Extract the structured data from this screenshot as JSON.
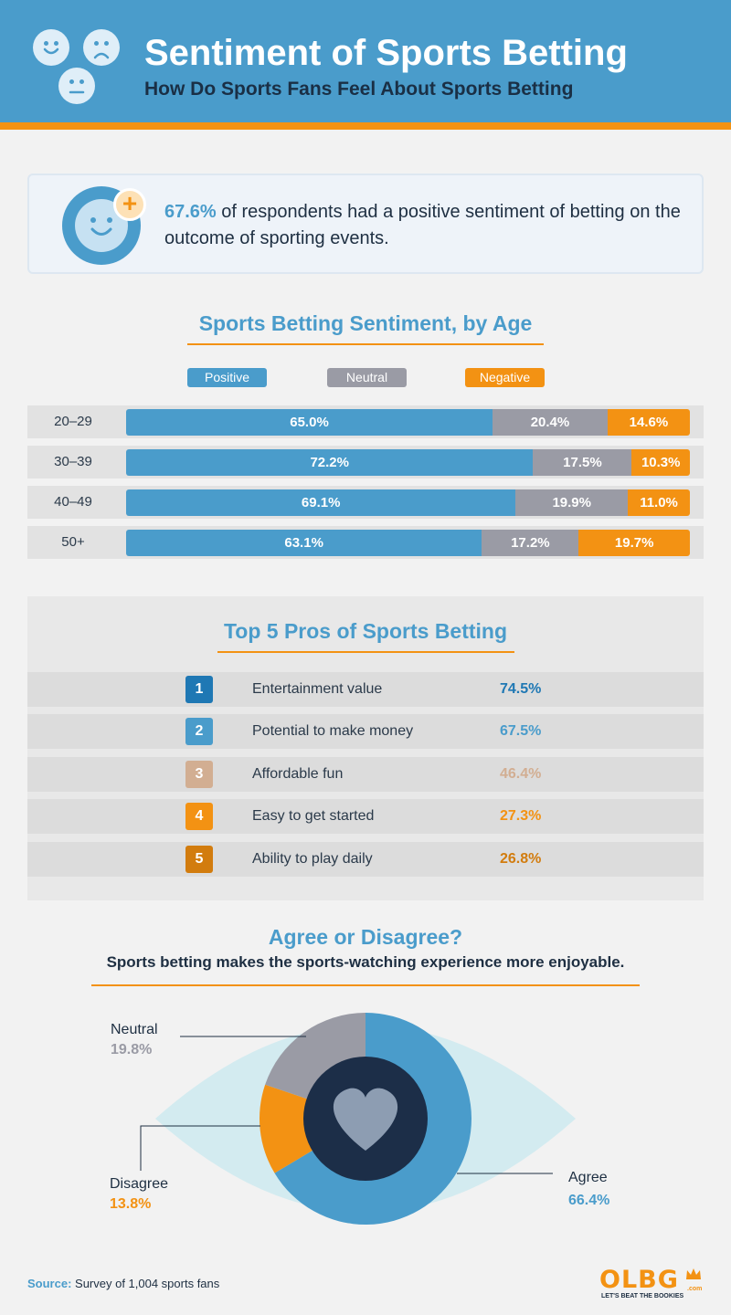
{
  "header": {
    "title": "Sentiment of Sports Betting",
    "subtitle": "How Do Sports Fans Feel About Sports Betting"
  },
  "highlight": {
    "percent": "67.6%",
    "text": " of respondents had a positive sentiment of betting on the outcome of sporting events."
  },
  "age_section": {
    "title": "Sports Betting Sentiment, by Age"
  },
  "pros_section": {
    "title": "Top 5 Pros of Sports Betting"
  },
  "agree_section": {
    "title": "Agree or Disagree?",
    "subtitle": "Sports betting makes the sports-watching experience more enjoyable."
  },
  "footer": {
    "source_label": "Source:",
    "source_text": " Survey of 1,004 sports fans",
    "logo": "OLBG",
    "logo_com": ".com",
    "logo_tagline": "LET'S BEAT THE BOOKIES"
  },
  "colors": {
    "positive": "#4a9ccb",
    "neutral": "#9a9ba5",
    "negative": "#f39213",
    "header_bg": "#4a9ccb",
    "accent": "#f39213"
  },
  "icons": [
    "smiley-face-icon",
    "sad-face-icon",
    "neutral-face-icon",
    "heart-icon",
    "plus-icon",
    "crown-icon"
  ],
  "chart_data": [
    {
      "type": "bar",
      "orientation": "horizontal-stacked-100",
      "title": "Sports Betting Sentiment, by Age",
      "categories": [
        "20–29",
        "30–39",
        "40–49",
        "50+"
      ],
      "series": [
        {
          "name": "Positive",
          "color": "#4a9ccb",
          "values": [
            65.0,
            72.2,
            69.1,
            63.1
          ],
          "labels": [
            "65.0%",
            "72.2%",
            "69.1%",
            "63.1%"
          ]
        },
        {
          "name": "Neutral",
          "color": "#9a9ba5",
          "values": [
            20.4,
            17.5,
            19.9,
            17.2
          ],
          "labels": [
            "20.4%",
            "17.5%",
            "19.9%",
            "17.2%"
          ]
        },
        {
          "name": "Negative",
          "color": "#f39213",
          "values": [
            14.6,
            10.3,
            11.0,
            19.7
          ],
          "labels": [
            "14.6%",
            "10.3%",
            "11.0%",
            "19.7%"
          ]
        }
      ],
      "legend": "top",
      "unit": "%"
    },
    {
      "type": "table",
      "title": "Top 5 Pros of Sports Betting",
      "rows": [
        {
          "rank": "1",
          "label": "Entertainment value",
          "value": 74.5,
          "display": "74.5%",
          "color": "#1f78b4"
        },
        {
          "rank": "2",
          "label": "Potential to make money",
          "value": 67.5,
          "display": "67.5%",
          "color": "#4a9ccb"
        },
        {
          "rank": "3",
          "label": "Affordable fun",
          "value": 46.4,
          "display": "46.4%",
          "color": "#d2ae92"
        },
        {
          "rank": "4",
          "label": "Easy to get started",
          "value": 27.3,
          "display": "27.3%",
          "color": "#f39213"
        },
        {
          "rank": "5",
          "label": "Ability to play daily",
          "value": 26.8,
          "display": "26.8%",
          "color": "#d27c0e"
        }
      ]
    },
    {
      "type": "pie",
      "style": "donut",
      "title": "Agree or Disagree?",
      "slices": [
        {
          "name": "Agree",
          "value": 66.4,
          "display": "66.4%",
          "color": "#4a9ccb"
        },
        {
          "name": "Disagree",
          "value": 13.8,
          "display": "13.8%",
          "color": "#f39213"
        },
        {
          "name": "Neutral",
          "value": 19.8,
          "display": "19.8%",
          "color": "#9a9ba5"
        }
      ]
    }
  ]
}
